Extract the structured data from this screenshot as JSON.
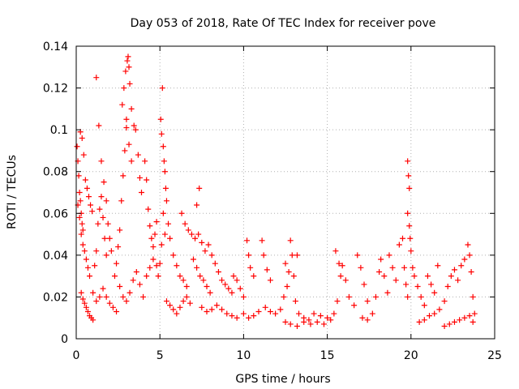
{
  "chart_data": {
    "type": "scatter",
    "title": "Day 053 of 2018, Rate Of TEC Index for receiver pove",
    "xlabel": "GPS time / hours",
    "ylabel": "ROTI / TECUs",
    "xlim": [
      0,
      25
    ],
    "ylim": [
      0,
      0.14
    ],
    "x_ticks": [
      0,
      5,
      10,
      15,
      20,
      25
    ],
    "x_tick_labels": [
      "0",
      "5",
      "10",
      "15",
      "20",
      "25"
    ],
    "y_ticks": [
      0,
      0.02,
      0.04,
      0.06,
      0.08,
      0.1,
      0.12,
      0.14
    ],
    "y_tick_labels": [
      "0",
      "0.02",
      "0.04",
      "0.06",
      "0.08",
      "0.1",
      "0.12",
      "0.14"
    ],
    "grid": true,
    "marker": "+",
    "color": "#ff0000",
    "series": [
      {
        "points": [
          [
            0.05,
            0.092
          ],
          [
            0.1,
            0.085
          ],
          [
            0.15,
            0.078
          ],
          [
            0.2,
            0.07
          ],
          [
            0.25,
            0.066
          ],
          [
            0.3,
            0.06
          ],
          [
            0.35,
            0.055
          ],
          [
            0.4,
            0.052
          ],
          [
            0.1,
            0.064
          ],
          [
            0.2,
            0.058
          ],
          [
            0.3,
            0.05
          ],
          [
            0.4,
            0.045
          ],
          [
            0.5,
            0.042
          ],
          [
            0.6,
            0.038
          ],
          [
            0.7,
            0.034
          ],
          [
            0.8,
            0.03
          ],
          [
            0.25,
            0.099
          ],
          [
            0.35,
            0.096
          ],
          [
            0.45,
            0.088
          ],
          [
            0.55,
            0.076
          ],
          [
            0.65,
            0.072
          ],
          [
            0.75,
            0.068
          ],
          [
            0.85,
            0.064
          ],
          [
            0.95,
            0.061
          ],
          [
            0.3,
            0.022
          ],
          [
            0.4,
            0.019
          ],
          [
            0.5,
            0.017
          ],
          [
            0.6,
            0.015
          ],
          [
            0.7,
            0.013
          ],
          [
            0.8,
            0.011
          ],
          [
            0.9,
            0.01
          ],
          [
            1.0,
            0.009
          ],
          [
            1.1,
            0.035
          ],
          [
            1.2,
            0.042
          ],
          [
            1.3,
            0.055
          ],
          [
            1.4,
            0.062
          ],
          [
            1.5,
            0.068
          ],
          [
            1.6,
            0.058
          ],
          [
            1.7,
            0.048
          ],
          [
            1.8,
            0.04
          ],
          [
            1.2,
            0.125
          ],
          [
            1.35,
            0.102
          ],
          [
            1.5,
            0.085
          ],
          [
            1.65,
            0.075
          ],
          [
            1.8,
            0.066
          ],
          [
            1.9,
            0.055
          ],
          [
            2.0,
            0.048
          ],
          [
            2.1,
            0.042
          ],
          [
            1.0,
            0.022
          ],
          [
            1.2,
            0.018
          ],
          [
            1.4,
            0.02
          ],
          [
            1.6,
            0.024
          ],
          [
            1.8,
            0.02
          ],
          [
            2.0,
            0.017
          ],
          [
            2.2,
            0.015
          ],
          [
            2.4,
            0.013
          ],
          [
            2.3,
            0.03
          ],
          [
            2.4,
            0.036
          ],
          [
            2.5,
            0.044
          ],
          [
            2.6,
            0.052
          ],
          [
            2.7,
            0.066
          ],
          [
            2.8,
            0.078
          ],
          [
            2.9,
            0.09
          ],
          [
            3.0,
            0.105
          ],
          [
            2.75,
            0.112
          ],
          [
            2.85,
            0.12
          ],
          [
            2.95,
            0.128
          ],
          [
            3.05,
            0.133
          ],
          [
            3.1,
            0.135
          ],
          [
            3.15,
            0.13
          ],
          [
            3.2,
            0.122
          ],
          [
            3.3,
            0.11
          ],
          [
            3.0,
            0.101
          ],
          [
            3.15,
            0.093
          ],
          [
            3.3,
            0.085
          ],
          [
            3.45,
            0.102
          ],
          [
            3.55,
            0.1
          ],
          [
            3.7,
            0.088
          ],
          [
            3.8,
            0.077
          ],
          [
            3.9,
            0.07
          ],
          [
            2.6,
            0.025
          ],
          [
            2.8,
            0.02
          ],
          [
            3.0,
            0.018
          ],
          [
            3.2,
            0.022
          ],
          [
            3.4,
            0.028
          ],
          [
            3.6,
            0.032
          ],
          [
            3.8,
            0.026
          ],
          [
            4.0,
            0.02
          ],
          [
            4.1,
            0.085
          ],
          [
            4.2,
            0.076
          ],
          [
            4.3,
            0.062
          ],
          [
            4.4,
            0.054
          ],
          [
            4.5,
            0.048
          ],
          [
            4.6,
            0.044
          ],
          [
            4.7,
            0.05
          ],
          [
            4.8,
            0.056
          ],
          [
            4.2,
            0.03
          ],
          [
            4.4,
            0.034
          ],
          [
            4.6,
            0.038
          ],
          [
            4.8,
            0.035
          ],
          [
            4.9,
            0.03
          ],
          [
            5.0,
            0.036
          ],
          [
            5.1,
            0.045
          ],
          [
            5.2,
            0.06
          ],
          [
            5.05,
            0.105
          ],
          [
            5.1,
            0.098
          ],
          [
            5.15,
            0.12
          ],
          [
            5.2,
            0.092
          ],
          [
            5.25,
            0.085
          ],
          [
            5.3,
            0.08
          ],
          [
            5.35,
            0.072
          ],
          [
            5.4,
            0.066
          ],
          [
            5.3,
            0.05
          ],
          [
            5.5,
            0.055
          ],
          [
            5.6,
            0.048
          ],
          [
            5.8,
            0.04
          ],
          [
            6.0,
            0.035
          ],
          [
            6.2,
            0.03
          ],
          [
            6.4,
            0.028
          ],
          [
            6.6,
            0.025
          ],
          [
            5.4,
            0.018
          ],
          [
            5.6,
            0.016
          ],
          [
            5.8,
            0.014
          ],
          [
            6.0,
            0.012
          ],
          [
            6.2,
            0.015
          ],
          [
            6.4,
            0.018
          ],
          [
            6.6,
            0.02
          ],
          [
            6.8,
            0.017
          ],
          [
            6.3,
            0.06
          ],
          [
            6.5,
            0.055
          ],
          [
            6.7,
            0.052
          ],
          [
            6.9,
            0.05
          ],
          [
            7.1,
            0.048
          ],
          [
            7.3,
            0.05
          ],
          [
            7.5,
            0.046
          ],
          [
            7.7,
            0.042
          ],
          [
            7.2,
            0.064
          ],
          [
            7.35,
            0.072
          ],
          [
            7.0,
            0.038
          ],
          [
            7.2,
            0.034
          ],
          [
            7.4,
            0.03
          ],
          [
            7.6,
            0.028
          ],
          [
            7.8,
            0.025
          ],
          [
            8.0,
            0.022
          ],
          [
            7.9,
            0.045
          ],
          [
            8.1,
            0.04
          ],
          [
            8.3,
            0.036
          ],
          [
            8.5,
            0.032
          ],
          [
            8.7,
            0.028
          ],
          [
            8.9,
            0.026
          ],
          [
            9.1,
            0.024
          ],
          [
            9.3,
            0.022
          ],
          [
            7.5,
            0.015
          ],
          [
            7.8,
            0.013
          ],
          [
            8.1,
            0.014
          ],
          [
            8.4,
            0.016
          ],
          [
            8.7,
            0.014
          ],
          [
            9.0,
            0.012
          ],
          [
            9.3,
            0.011
          ],
          [
            9.6,
            0.01
          ],
          [
            9.4,
            0.03
          ],
          [
            9.6,
            0.028
          ],
          [
            9.8,
            0.024
          ],
          [
            10.0,
            0.02
          ],
          [
            10.2,
            0.047
          ],
          [
            10.3,
            0.04
          ],
          [
            10.4,
            0.034
          ],
          [
            10.6,
            0.03
          ],
          [
            10.0,
            0.012
          ],
          [
            10.3,
            0.01
          ],
          [
            10.6,
            0.011
          ],
          [
            10.9,
            0.013
          ],
          [
            11.1,
            0.047
          ],
          [
            11.2,
            0.04
          ],
          [
            11.4,
            0.033
          ],
          [
            11.6,
            0.028
          ],
          [
            11.3,
            0.015
          ],
          [
            11.6,
            0.013
          ],
          [
            11.9,
            0.012
          ],
          [
            12.2,
            0.014
          ],
          [
            12.4,
            0.02
          ],
          [
            12.6,
            0.025
          ],
          [
            12.8,
            0.047
          ],
          [
            12.9,
            0.04
          ],
          [
            12.5,
            0.036
          ],
          [
            12.7,
            0.032
          ],
          [
            13.0,
            0.03
          ],
          [
            13.2,
            0.04
          ],
          [
            13.1,
            0.018
          ],
          [
            13.3,
            0.012
          ],
          [
            13.6,
            0.01
          ],
          [
            13.9,
            0.009
          ],
          [
            12.5,
            0.008
          ],
          [
            12.8,
            0.007
          ],
          [
            13.2,
            0.006
          ],
          [
            13.6,
            0.008
          ],
          [
            14.0,
            0.007
          ],
          [
            14.4,
            0.008
          ],
          [
            14.8,
            0.007
          ],
          [
            15.2,
            0.009
          ],
          [
            14.2,
            0.012
          ],
          [
            14.6,
            0.011
          ],
          [
            15.0,
            0.01
          ],
          [
            15.4,
            0.012
          ],
          [
            15.6,
            0.018
          ],
          [
            15.8,
            0.03
          ],
          [
            15.5,
            0.042
          ],
          [
            15.7,
            0.036
          ],
          [
            15.9,
            0.035
          ],
          [
            16.1,
            0.028
          ],
          [
            16.3,
            0.02
          ],
          [
            16.6,
            0.016
          ],
          [
            16.8,
            0.04
          ],
          [
            17.0,
            0.034
          ],
          [
            17.2,
            0.026
          ],
          [
            17.4,
            0.018
          ],
          [
            17.1,
            0.01
          ],
          [
            17.4,
            0.009
          ],
          [
            17.7,
            0.012
          ],
          [
            17.9,
            0.02
          ],
          [
            18.1,
            0.032
          ],
          [
            18.2,
            0.038
          ],
          [
            18.4,
            0.03
          ],
          [
            18.6,
            0.022
          ],
          [
            18.7,
            0.04
          ],
          [
            18.9,
            0.034
          ],
          [
            19.1,
            0.028
          ],
          [
            19.3,
            0.045
          ],
          [
            19.5,
            0.048
          ],
          [
            19.6,
            0.034
          ],
          [
            19.7,
            0.026
          ],
          [
            19.8,
            0.02
          ],
          [
            19.8,
            0.085
          ],
          [
            19.85,
            0.078
          ],
          [
            19.9,
            0.072
          ],
          [
            19.8,
            0.06
          ],
          [
            19.9,
            0.054
          ],
          [
            19.95,
            0.048
          ],
          [
            20.0,
            0.042
          ],
          [
            20.1,
            0.034
          ],
          [
            20.2,
            0.03
          ],
          [
            20.4,
            0.025
          ],
          [
            20.6,
            0.02
          ],
          [
            20.8,
            0.016
          ],
          [
            21.0,
            0.03
          ],
          [
            21.2,
            0.026
          ],
          [
            21.4,
            0.022
          ],
          [
            21.6,
            0.035
          ],
          [
            20.5,
            0.008
          ],
          [
            20.8,
            0.009
          ],
          [
            21.1,
            0.011
          ],
          [
            21.4,
            0.012
          ],
          [
            21.7,
            0.014
          ],
          [
            22.0,
            0.018
          ],
          [
            22.2,
            0.025
          ],
          [
            22.4,
            0.03
          ],
          [
            22.0,
            0.006
          ],
          [
            22.3,
            0.007
          ],
          [
            22.6,
            0.008
          ],
          [
            22.9,
            0.009
          ],
          [
            23.2,
            0.01
          ],
          [
            23.5,
            0.011
          ],
          [
            23.7,
            0.008
          ],
          [
            23.8,
            0.012
          ],
          [
            22.6,
            0.033
          ],
          [
            22.8,
            0.028
          ],
          [
            23.0,
            0.035
          ],
          [
            23.2,
            0.038
          ],
          [
            23.4,
            0.045
          ],
          [
            23.5,
            0.04
          ],
          [
            23.6,
            0.032
          ],
          [
            23.7,
            0.02
          ]
        ]
      }
    ]
  }
}
